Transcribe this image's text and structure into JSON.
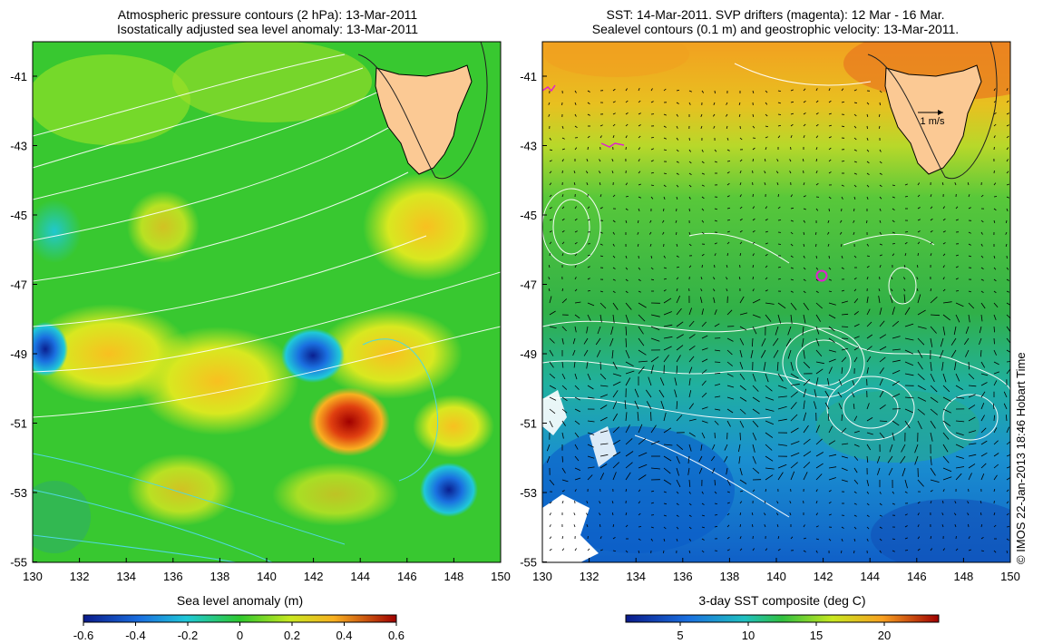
{
  "left_panel": {
    "title_line1": "Atmospheric pressure contours (2 hPa): 13-Mar-2011",
    "title_line2": "Isostatically adjusted sea level anomaly: 13-Mar-2011",
    "x_ticks": [
      "130",
      "132",
      "134",
      "136",
      "138",
      "140",
      "142",
      "144",
      "146",
      "148",
      "150"
    ],
    "y_ticks": [
      "-41",
      "-43",
      "-45",
      "-47",
      "-49",
      "-51",
      "-53",
      "-55"
    ],
    "colorbar_label": "Sea level anomaly (m)",
    "colorbar_ticks": [
      "-0.6",
      "-0.4",
      "-0.2",
      "0",
      "0.2",
      "0.4",
      "0.6"
    ]
  },
  "right_panel": {
    "title_line1": "SST: 14-Mar-2011. SVP drifters (magenta): 12 Mar - 16 Mar.",
    "title_line2": "Sealevel contours (0.1 m) and geostrophic velocity: 13-Mar-2011.",
    "x_ticks": [
      "130",
      "132",
      "134",
      "136",
      "138",
      "140",
      "142",
      "144",
      "146",
      "148",
      "150"
    ],
    "y_ticks": [
      "-41",
      "-43",
      "-45",
      "-47",
      "-49",
      "-51",
      "-53",
      "-55"
    ],
    "velocity_scale_label": "1 m/s",
    "colorbar_label": "3-day SST composite (deg C)",
    "colorbar_ticks": [
      "5",
      "10",
      "15",
      "20"
    ]
  },
  "credit": "© IMOS 22-Jan-2013 18:46 Hobart Time",
  "colors": {
    "land": "#fbc994",
    "sla_positive_max": "#b00000",
    "sla_negative_max": "#1030c0",
    "sla_zero": "#3ccf30",
    "sst_warm": "#f29a1a",
    "sst_cold": "#0a6ad8",
    "contours": "#ffffff",
    "drifter": "#e020d0"
  }
}
